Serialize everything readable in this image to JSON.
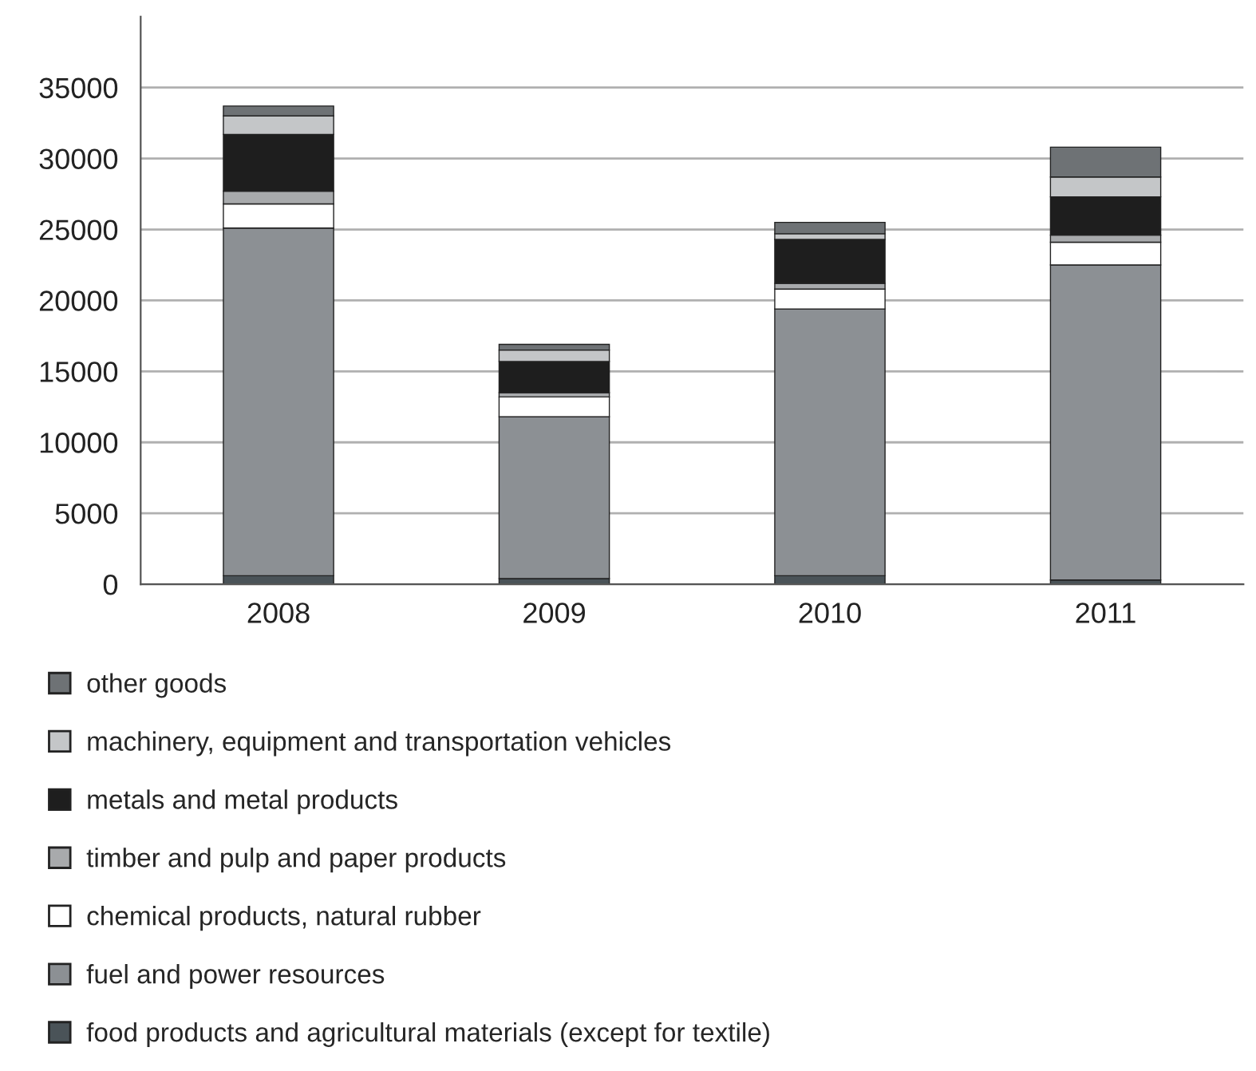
{
  "chart_data": {
    "type": "bar",
    "stacked": true,
    "categories": [
      "2008",
      "2009",
      "2010",
      "2011"
    ],
    "series": [
      {
        "name": "food products and agricultural materials (except for textile)",
        "color": "#4a5358",
        "values": [
          600,
          400,
          600,
          300
        ]
      },
      {
        "name": "fuel and power resources",
        "color": "#8c9094",
        "values": [
          24500,
          11400,
          18800,
          22200
        ]
      },
      {
        "name": "chemical products, natural rubber",
        "color": "#ffffff",
        "values": [
          1700,
          1400,
          1400,
          1600
        ]
      },
      {
        "name": "timber and pulp and paper products",
        "color": "#a8aaac",
        "values": [
          900,
          300,
          400,
          500
        ]
      },
      {
        "name": "metals and metal products",
        "color": "#1e1e1e",
        "values": [
          4000,
          2200,
          3100,
          2700
        ]
      },
      {
        "name": "machinery, equipment and transportation vehicles",
        "color": "#c4c6c8",
        "values": [
          1300,
          800,
          400,
          1400
        ]
      },
      {
        "name": "other goods",
        "color": "#6e7275",
        "values": [
          700,
          400,
          800,
          2100
        ]
      }
    ],
    "ylim": [
      0,
      40000
    ],
    "yticks": [
      0,
      5000,
      10000,
      15000,
      20000,
      25000,
      30000,
      35000
    ],
    "grid": "y",
    "legend": "bottom"
  }
}
